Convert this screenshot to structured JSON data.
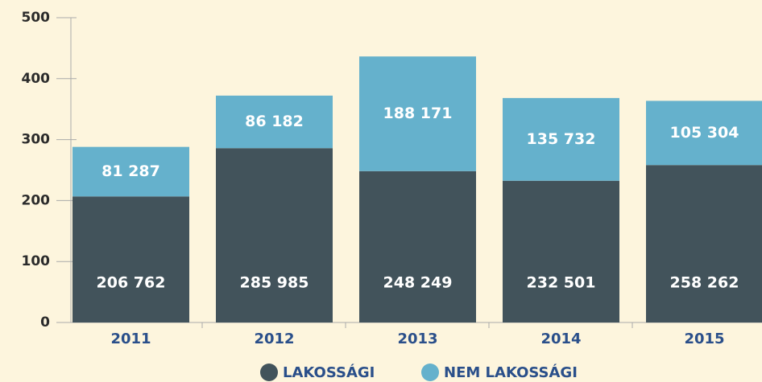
{
  "chart_data": {
    "type": "bar",
    "stacked": true,
    "categories": [
      "2011",
      "2012",
      "2013",
      "2014",
      "2015"
    ],
    "series": [
      {
        "name": "LAKOSSÁGI",
        "color": "#42535b",
        "values": [
          206.762,
          285.985,
          248.249,
          232.501,
          258.262
        ],
        "value_labels": [
          "206 762",
          "285 985",
          "248 249",
          "232 501",
          "258 262"
        ]
      },
      {
        "name": "NEM LAKOSSÁGI",
        "color": "#65b1cc",
        "values": [
          81.287,
          86.182,
          188.171,
          135.732,
          105.304
        ],
        "value_labels": [
          "81 287",
          "86 182",
          "188 171",
          "135 732",
          "105 304"
        ]
      }
    ],
    "ylim": [
      0,
      500
    ],
    "yticks": [
      0,
      100,
      200,
      300,
      400,
      500
    ]
  }
}
